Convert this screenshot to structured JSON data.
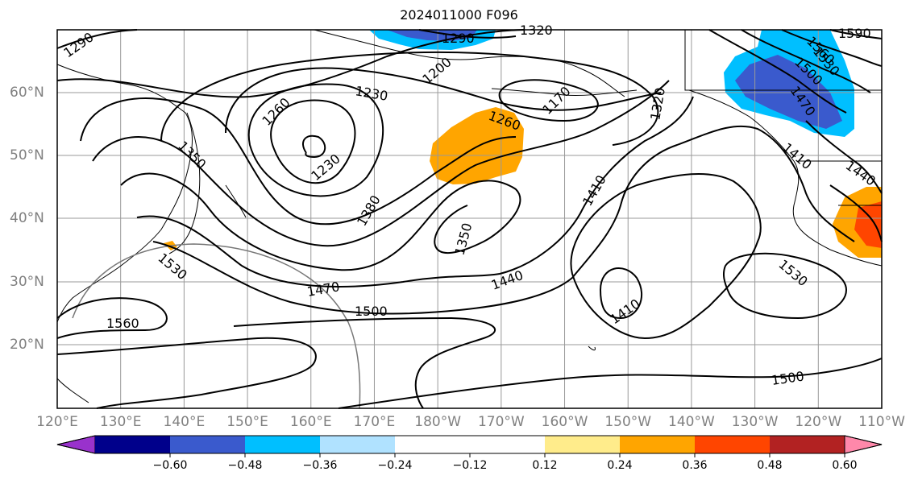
{
  "title": "2024011000 F096",
  "map": {
    "lon_ticks": [
      "120°E",
      "130°E",
      "140°E",
      "150°E",
      "160°E",
      "170°E",
      "180°W",
      "170°W",
      "160°W",
      "150°W",
      "140°W",
      "130°W",
      "120°W",
      "110°W"
    ],
    "lat_ticks": [
      "60°N",
      "50°N",
      "40°N",
      "30°N",
      "20°N"
    ],
    "contour_labels": [
      "1290",
      "1290",
      "1320",
      "1590",
      "1560",
      "1530",
      "1500",
      "1470",
      "1200",
      "1230",
      "1260",
      "1170",
      "1260",
      "1320",
      "1350",
      "1260",
      "1230",
      "1410",
      "1440",
      "1380",
      "1410",
      "1350",
      "1470",
      "1440",
      "1530",
      "1560",
      "1500",
      "1530",
      "1410",
      "1500"
    ],
    "anomaly_regions": [
      {
        "name": "north-pacific-positive",
        "level": 0.3,
        "color": "#ffa500"
      },
      {
        "name": "bering-negative",
        "level": -0.3,
        "color": "#00bfff"
      },
      {
        "name": "gulf-of-alaska-negative",
        "level": -0.42,
        "color": "#3a5acd"
      },
      {
        "name": "southwest-us-positive",
        "level": 0.4,
        "color": "#ff4500"
      }
    ]
  },
  "colorbar": {
    "colors": [
      "#9932cc",
      "#00008b",
      "#3a5acd",
      "#00bfff",
      "#b0e2ff",
      "#ffffff",
      "#ffffff",
      "#ffec8b",
      "#ffa500",
      "#ff4500",
      "#b22222",
      "#ff88aa"
    ],
    "labels": [
      "−0.60",
      "−0.48",
      "−0.36",
      "−0.24",
      "−0.12",
      "0.12",
      "0.24",
      "0.36",
      "0.48",
      "0.60"
    ]
  }
}
